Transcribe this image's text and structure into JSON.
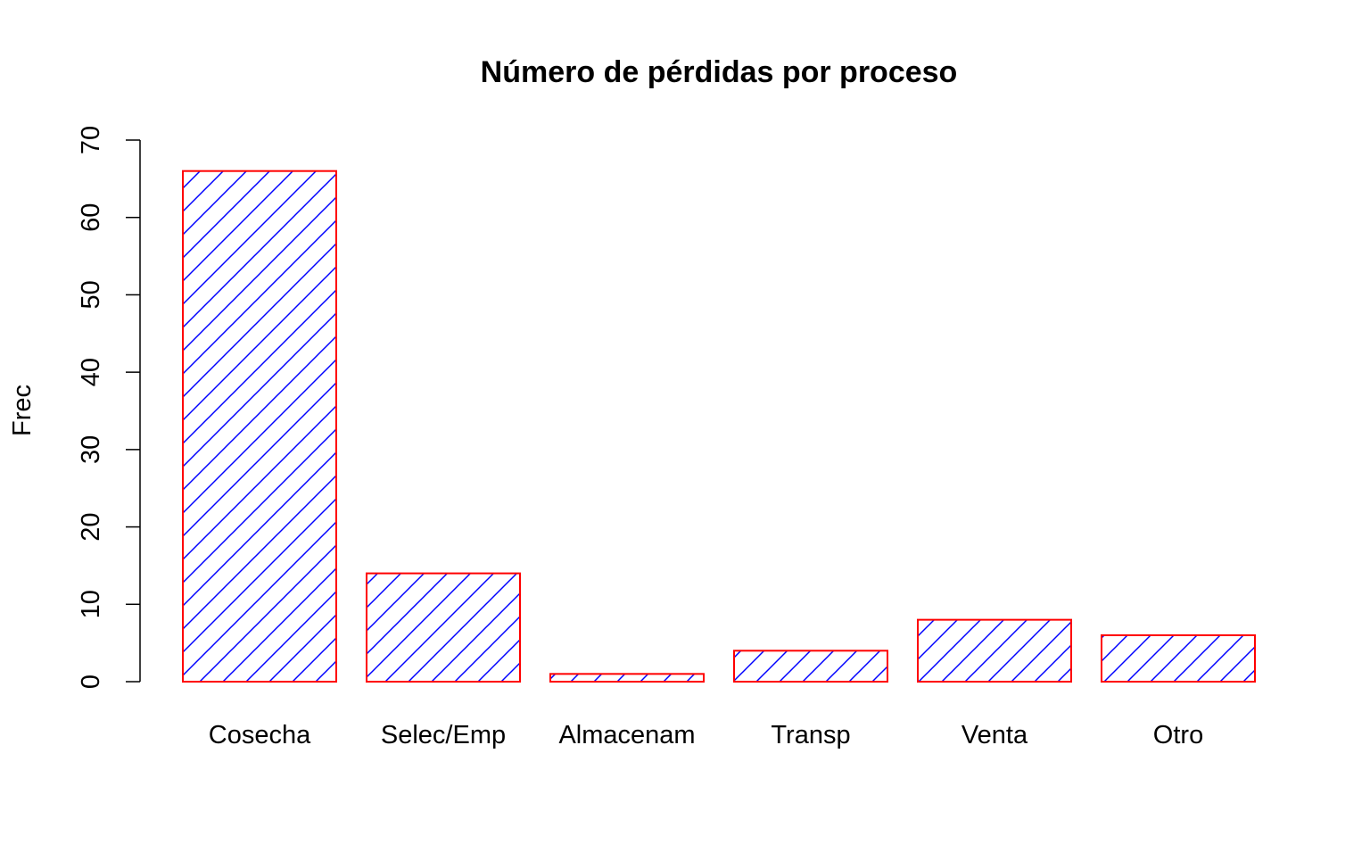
{
  "chart_data": {
    "type": "bar",
    "title": "Número de pérdidas por proceso",
    "xlabel": "",
    "ylabel": "Frec",
    "categories": [
      "Cosecha",
      "Selec/Emp",
      "Almacenam",
      "Transp",
      "Venta",
      "Otro"
    ],
    "values": [
      66,
      14,
      1,
      4,
      8,
      6
    ],
    "ylim": [
      0,
      70
    ],
    "yticks": [
      "0",
      "10",
      "20",
      "30",
      "40",
      "50",
      "60",
      "70"
    ],
    "grid": false,
    "legend": "none",
    "bar_fill": "hatched diagonal lines",
    "colors": {
      "bar_border": "#ff0000",
      "bar_hatch": "#0000ff",
      "axis": "#000000",
      "background": "#ffffff"
    }
  }
}
